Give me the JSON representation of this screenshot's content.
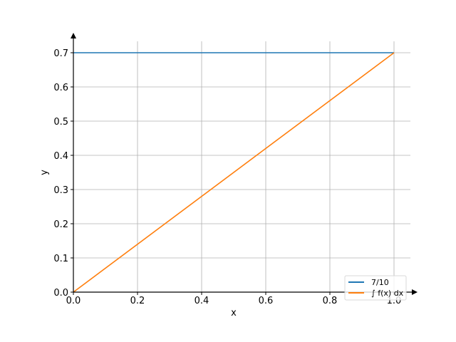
{
  "chart_data": {
    "type": "line",
    "title": "",
    "xlabel": "x",
    "ylabel": "y",
    "xlim": [
      0.0,
      1.0
    ],
    "ylim": [
      0.0,
      0.7
    ],
    "xticks": [
      0.0,
      0.2,
      0.4,
      0.6,
      0.8,
      1.0
    ],
    "xtick_labels": [
      "0.0",
      "0.2",
      "0.4",
      "0.6",
      "0.8",
      "1.0"
    ],
    "yticks": [
      0.0,
      0.1,
      0.2,
      0.3,
      0.4,
      0.5,
      0.6,
      0.7
    ],
    "ytick_labels": [
      "0.0",
      "0.1",
      "0.2",
      "0.3",
      "0.4",
      "0.5",
      "0.6",
      "0.7"
    ],
    "grid": true,
    "legend_position": "bottom-right",
    "series": [
      {
        "name": "7/10",
        "color": "#1f77b4",
        "x": [
          0.0,
          1.0
        ],
        "y": [
          0.7,
          0.7
        ]
      },
      {
        "name": "∫ f(x) dx",
        "color": "#ff7f0e",
        "x": [
          0.0,
          1.0
        ],
        "y": [
          0.0,
          0.7
        ]
      }
    ]
  }
}
